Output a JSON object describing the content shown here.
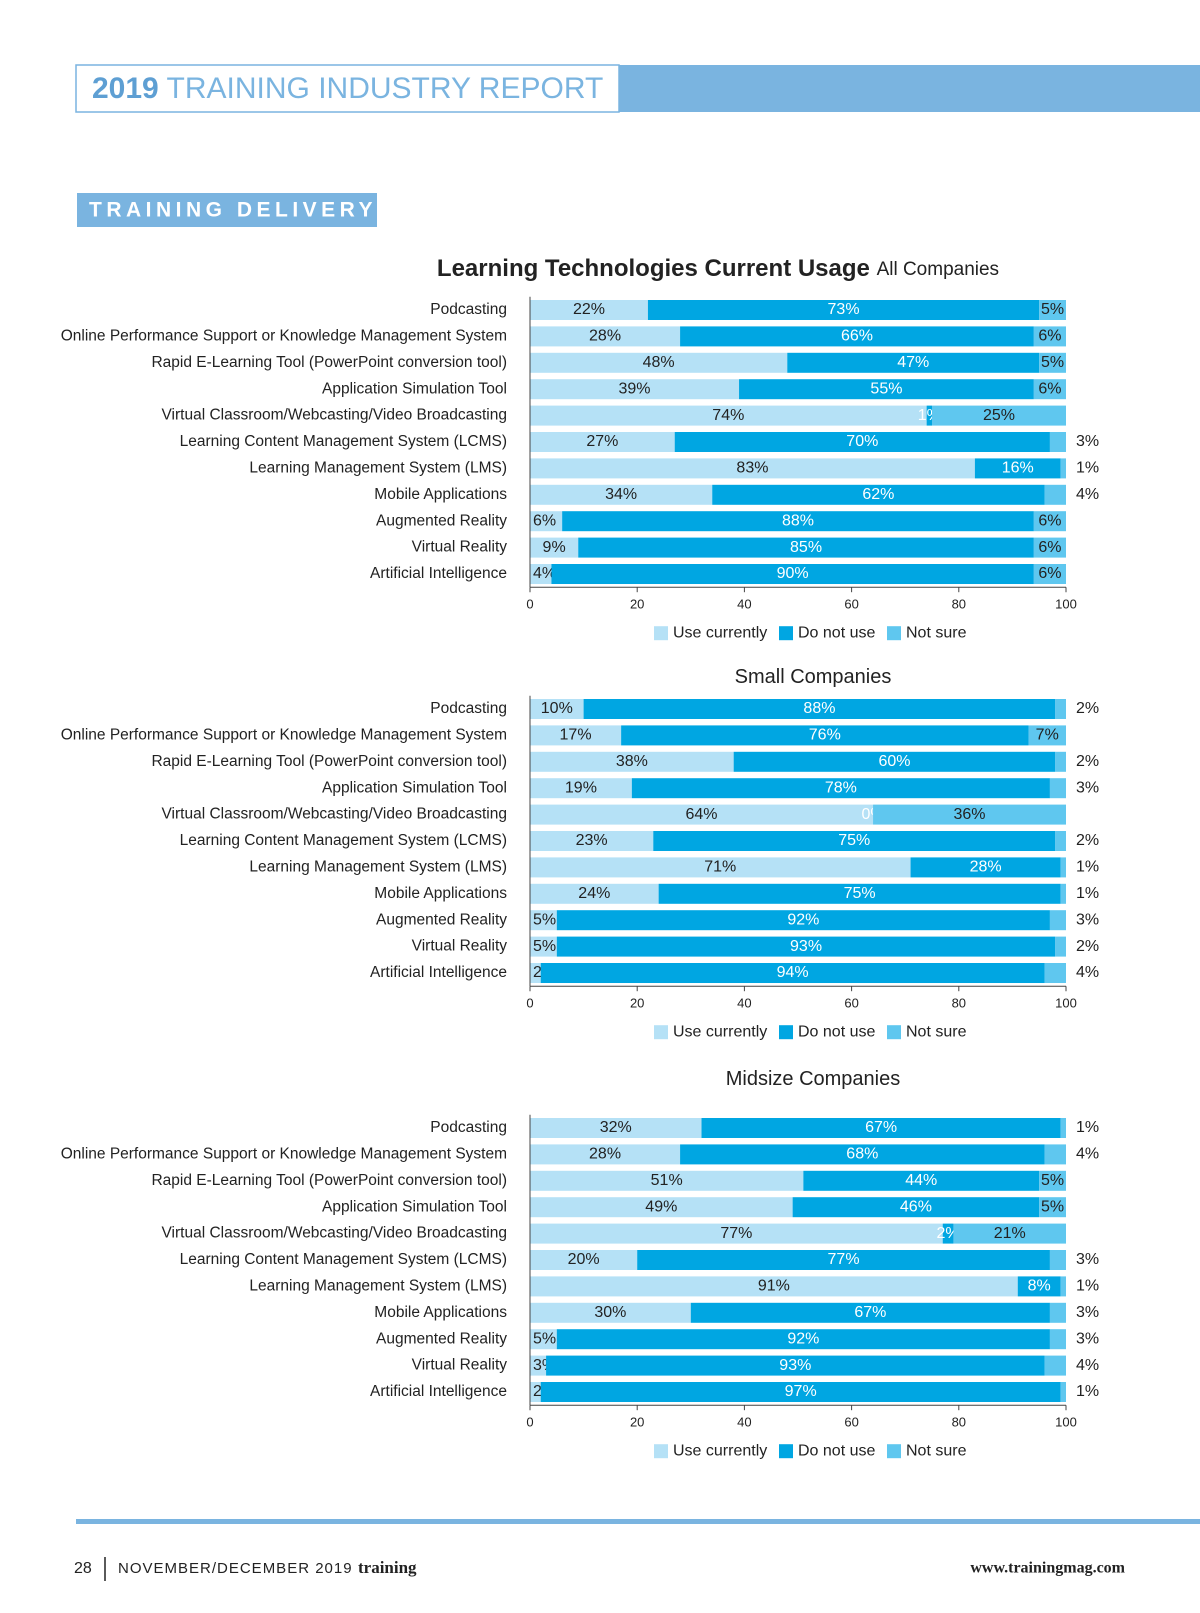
{
  "header": {
    "year": "2019",
    "title": "TRAINING INDUSTRY REPORT"
  },
  "section": "TRAINING DELIVERY",
  "chart_data": [
    {
      "type": "bar",
      "title": "Learning Technologies Current Usage",
      "subtitle": "All Companies",
      "categories": [
        "Podcasting",
        "Online Performance Support or Knowledge Management System",
        "Rapid E-Learning Tool (PowerPoint conversion tool)",
        "Application Simulation Tool",
        "Virtual Classroom/Webcasting/Video Broadcasting",
        "Learning Content Management System (LCMS)",
        "Learning Management System (LMS)",
        "Mobile Applications",
        "Augmented Reality",
        "Virtual Reality",
        "Artificial Intelligence"
      ],
      "series": [
        {
          "name": "Use currently",
          "color": "#b5e1f6",
          "values": [
            22,
            28,
            48,
            39,
            74,
            27,
            83,
            34,
            6,
            9,
            4
          ],
          "value_labels": [
            "22%",
            "28%",
            "48%",
            "39%",
            "74%",
            "27%",
            "83%",
            "34%",
            "6%",
            "9%",
            "4%"
          ]
        },
        {
          "name": "Do not use",
          "color": "#00a6e2",
          "values": [
            73,
            66,
            47,
            55,
            1,
            70,
            16,
            62,
            88,
            85,
            90
          ],
          "value_labels": [
            "73%",
            "66%",
            "47%",
            "55%",
            "1%",
            "70%",
            "16%",
            "62%",
            "88%",
            "85%",
            "90%"
          ]
        },
        {
          "name": "Not sure",
          "color": "#5fc7ef",
          "values": [
            5,
            6,
            5,
            6,
            25,
            3,
            1,
            4,
            6,
            6,
            6
          ],
          "value_labels": [
            "5%",
            "6%",
            "5%",
            "6%",
            "25%",
            "3%",
            "1%",
            "4%",
            "6%",
            "6%",
            "6%"
          ]
        }
      ],
      "xlim": [
        0,
        100
      ],
      "xticks": [
        0,
        20,
        40,
        60,
        80,
        100
      ]
    },
    {
      "type": "bar",
      "title": "Small Companies",
      "categories": [
        "Podcasting",
        "Online Performance Support or Knowledge Management System",
        "Rapid E-Learning Tool (PowerPoint conversion tool)",
        "Application Simulation Tool",
        "Virtual Classroom/Webcasting/Video Broadcasting",
        "Learning Content Management System (LCMS)",
        "Learning Management System (LMS)",
        "Mobile Applications",
        "Augmented Reality",
        "Virtual Reality",
        "Artificial Intelligence"
      ],
      "series": [
        {
          "name": "Use currently",
          "color": "#b5e1f6",
          "values": [
            10,
            17,
            38,
            19,
            64,
            23,
            71,
            24,
            5,
            5,
            2
          ],
          "value_labels": [
            "10%",
            "17%",
            "38%",
            "19%",
            "64%",
            "23%",
            "71%",
            "24%",
            "5%",
            "5%",
            "2%"
          ]
        },
        {
          "name": "Do not use",
          "color": "#00a6e2",
          "values": [
            88,
            76,
            60,
            78,
            0,
            75,
            28,
            75,
            92,
            93,
            94
          ],
          "value_labels": [
            "88%",
            "76%",
            "60%",
            "78%",
            "0%",
            "75%",
            "28%",
            "75%",
            "92%",
            "93%",
            "94%"
          ]
        },
        {
          "name": "Not sure",
          "color": "#5fc7ef",
          "values": [
            2,
            7,
            2,
            3,
            36,
            2,
            1,
            1,
            3,
            2,
            4
          ],
          "value_labels": [
            "2%",
            "7%",
            "2%",
            "3%",
            "36%",
            "2%",
            "1%",
            "1%",
            "3%",
            "2%",
            "4%"
          ]
        }
      ],
      "xlim": [
        0,
        100
      ],
      "xticks": [
        0,
        20,
        40,
        60,
        80,
        100
      ]
    },
    {
      "type": "bar",
      "title": "Midsize Companies",
      "categories": [
        "Podcasting",
        "Online Performance Support or Knowledge Management System",
        "Rapid E-Learning Tool (PowerPoint conversion tool)",
        "Application Simulation Tool",
        "Virtual Classroom/Webcasting/Video Broadcasting",
        "Learning Content Management System (LCMS)",
        "Learning Management System (LMS)",
        "Mobile Applications",
        "Augmented Reality",
        "Virtual Reality",
        "Artificial Intelligence"
      ],
      "series": [
        {
          "name": "Use currently",
          "color": "#b5e1f6",
          "values": [
            32,
            28,
            51,
            49,
            77,
            20,
            91,
            30,
            5,
            3,
            2
          ],
          "value_labels": [
            "32%",
            "28%",
            "51%",
            "49%",
            "77%",
            "20%",
            "91%",
            "30%",
            "5%",
            "3%",
            "2%"
          ]
        },
        {
          "name": "Do not use",
          "color": "#00a6e2",
          "values": [
            67,
            68,
            44,
            46,
            2,
            77,
            8,
            67,
            92,
            93,
            97
          ],
          "value_labels": [
            "67%",
            "68%",
            "44%",
            "46%",
            "2%",
            "77%",
            "8%",
            "67%",
            "92%",
            "93%",
            "97%"
          ]
        },
        {
          "name": "Not sure",
          "color": "#5fc7ef",
          "values": [
            1,
            4,
            5,
            5,
            21,
            3,
            1,
            3,
            3,
            4,
            1
          ],
          "value_labels": [
            "1%",
            "4%",
            "5%",
            "5%",
            "21%",
            "3%",
            "1%",
            "3%",
            "3%",
            "4%",
            "1%"
          ]
        }
      ],
      "xlim": [
        0,
        100
      ],
      "xticks": [
        0,
        20,
        40,
        60,
        80,
        100
      ]
    }
  ],
  "footer": {
    "page": "28",
    "issue": "NOVEMBER/DECEMBER 2019",
    "brand": "training",
    "url": "www.trainingmag.com"
  }
}
